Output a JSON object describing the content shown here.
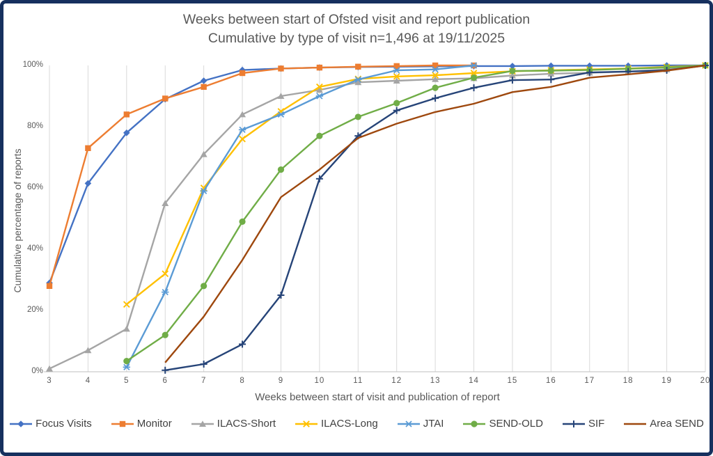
{
  "frame": {
    "border_color": "#16305e",
    "background": "#ffffff"
  },
  "title": {
    "line1": "Weeks between start of Ofsted visit and report publication",
    "line2": "Cumulative by type of visit n=1,496 at 19/11/2025"
  },
  "chart_data": {
    "type": "line",
    "title": "Weeks between start of Ofsted visit and report publication",
    "subtitle": "Cumulative by type of visit n=1,496 at 19/11/2025",
    "xlabel": "Weeks between start of visit and publication of report",
    "ylabel": "Cumulative percentage of reports",
    "x_ticks": [
      3,
      4,
      5,
      6,
      7,
      8,
      9,
      10,
      11,
      12,
      13,
      14,
      15,
      16,
      17,
      18,
      19,
      20
    ],
    "y_ticks": [
      {
        "v": 0,
        "label": "0%"
      },
      {
        "v": 20,
        "label": "20%"
      },
      {
        "v": 40,
        "label": "40%"
      },
      {
        "v": 60,
        "label": "60%"
      },
      {
        "v": 80,
        "label": "80%"
      },
      {
        "v": 100,
        "label": "100%"
      }
    ],
    "ylim": [
      0,
      100
    ],
    "xlim": [
      3,
      20
    ],
    "grid": "vertical-only",
    "gridline_color": "#d9d9d9",
    "axis_line_color": "#bfbfbf",
    "legend_position": "bottom",
    "series": [
      {
        "name": "Focus Visits",
        "color": "#4472C4",
        "marker": "diamond",
        "start_week": 3,
        "values": [
          29,
          61.5,
          78,
          89,
          95,
          98.5,
          99,
          99.3,
          99.5,
          99.6,
          99.7,
          99.8,
          99.8,
          99.9,
          99.9,
          99.9,
          100,
          100
        ]
      },
      {
        "name": "Monitor",
        "color": "#ED7D31",
        "marker": "square",
        "start_week": 3,
        "values": [
          28,
          73,
          84,
          89.2,
          93,
          97.5,
          99,
          99.3,
          99.6,
          99.8,
          100,
          100
        ]
      },
      {
        "name": "ILACS-Short",
        "color": "#A5A5A5",
        "marker": "triangle",
        "start_week": 3,
        "values": [
          1,
          7,
          14,
          55,
          71,
          84,
          90,
          92,
          94.5,
          95,
          95.5,
          95.8,
          96.7,
          97.3,
          97.6,
          98,
          98.7,
          100
        ]
      },
      {
        "name": "ILACS-Long",
        "color": "#FFC000",
        "marker": "x",
        "start_week": 5,
        "values": [
          22,
          32,
          60,
          76,
          85,
          93,
          95.6,
          96.4,
          96.8,
          97.5,
          98.1,
          98.4,
          98.7,
          99,
          99.5,
          100
        ]
      },
      {
        "name": "JTAI",
        "color": "#5B9BD5",
        "marker": "asterisk",
        "start_week": 5,
        "values": [
          1.5,
          26,
          59,
          79,
          84,
          90,
          95.4,
          98.4,
          98.7,
          100
        ]
      },
      {
        "name": "SEND-OLD",
        "color": "#70AD47",
        "marker": "circle",
        "start_week": 5,
        "values": [
          3.5,
          12,
          28,
          49,
          66,
          77,
          83.2,
          87.7,
          92.7,
          96,
          98.2,
          98.3,
          98.5,
          98.9,
          99.3,
          100
        ]
      },
      {
        "name": "SIF",
        "color": "#264478",
        "marker": "plus",
        "start_week": 6,
        "values": [
          0.5,
          2.5,
          9,
          25,
          63,
          77,
          85.3,
          89.3,
          92.7,
          95.2,
          95.4,
          97.7,
          98,
          98.4,
          100
        ]
      },
      {
        "name": "Area SEND",
        "color": "#9E480E",
        "marker": "none",
        "start_week": 6,
        "values": [
          3,
          18,
          36.5,
          57,
          66,
          76.3,
          81,
          84.8,
          87.5,
          91.3,
          93,
          96,
          97.1,
          98.3,
          100
        ]
      }
    ]
  }
}
